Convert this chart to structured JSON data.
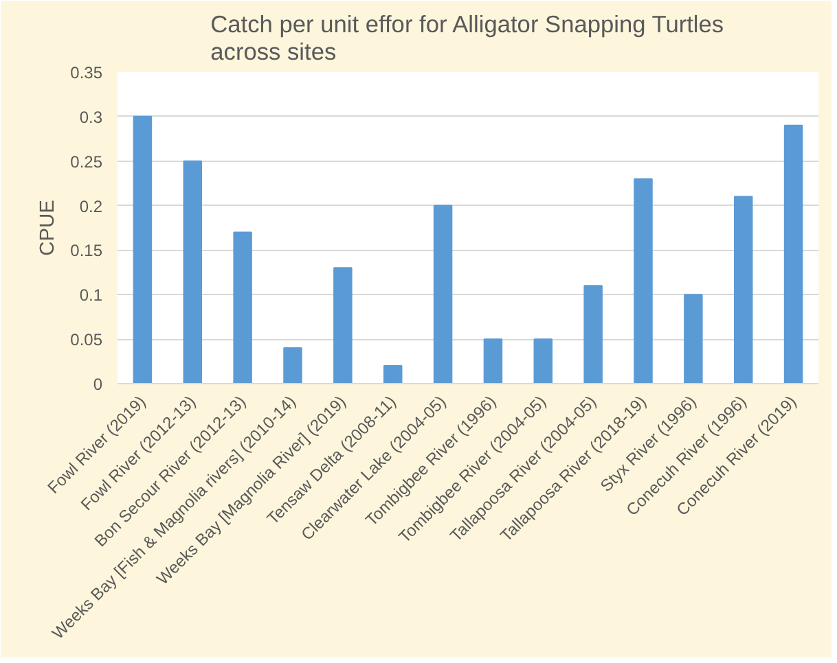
{
  "chart_data": {
    "type": "bar",
    "title": "Catch per unit effor for Alligator Snapping Turtles across sites",
    "ylabel": "CPUE",
    "categories": [
      "Fowl River (2019)",
      "Fowl River (2012-13)",
      "Bon Secour River (2012-13)",
      "Weeks Bay [Fish & Magnolia rivers] (2010-14)",
      "Weeks Bay [Magnolia River] (2019)",
      "Tensaw Delta (2008-11)",
      "Clearwater Lake (2004-05)",
      "Tombigbee River (1996)",
      "Tombigbee River (2004-05)",
      "Tallapoosa River (2004-05)",
      "Tallapoosa River (2018-19)",
      "Styx River (1996)",
      "Conecuh River (1996)",
      "Conecuh River (2019)"
    ],
    "values": [
      0.3,
      0.25,
      0.17,
      0.04,
      0.13,
      0.02,
      0.2,
      0.05,
      0.05,
      0.11,
      0.23,
      0.1,
      0.21,
      0.29
    ],
    "color": "#5b9bd5",
    "ylim": [
      0,
      0.35
    ],
    "yticks": [
      0,
      {
        "value": 0.05,
        "label": "0.05"
      },
      {
        "value": 0.1,
        "label": "0.1"
      },
      {
        "value": 0.15,
        "label": "0.15"
      },
      {
        "value": 0.2,
        "label": "0.2"
      },
      {
        "value": 0.25,
        "label": "0.25"
      },
      {
        "value": 0.3,
        "label": "0.3"
      },
      {
        "value": 0.35,
        "label": "0.35"
      }
    ],
    "grid": "y"
  }
}
